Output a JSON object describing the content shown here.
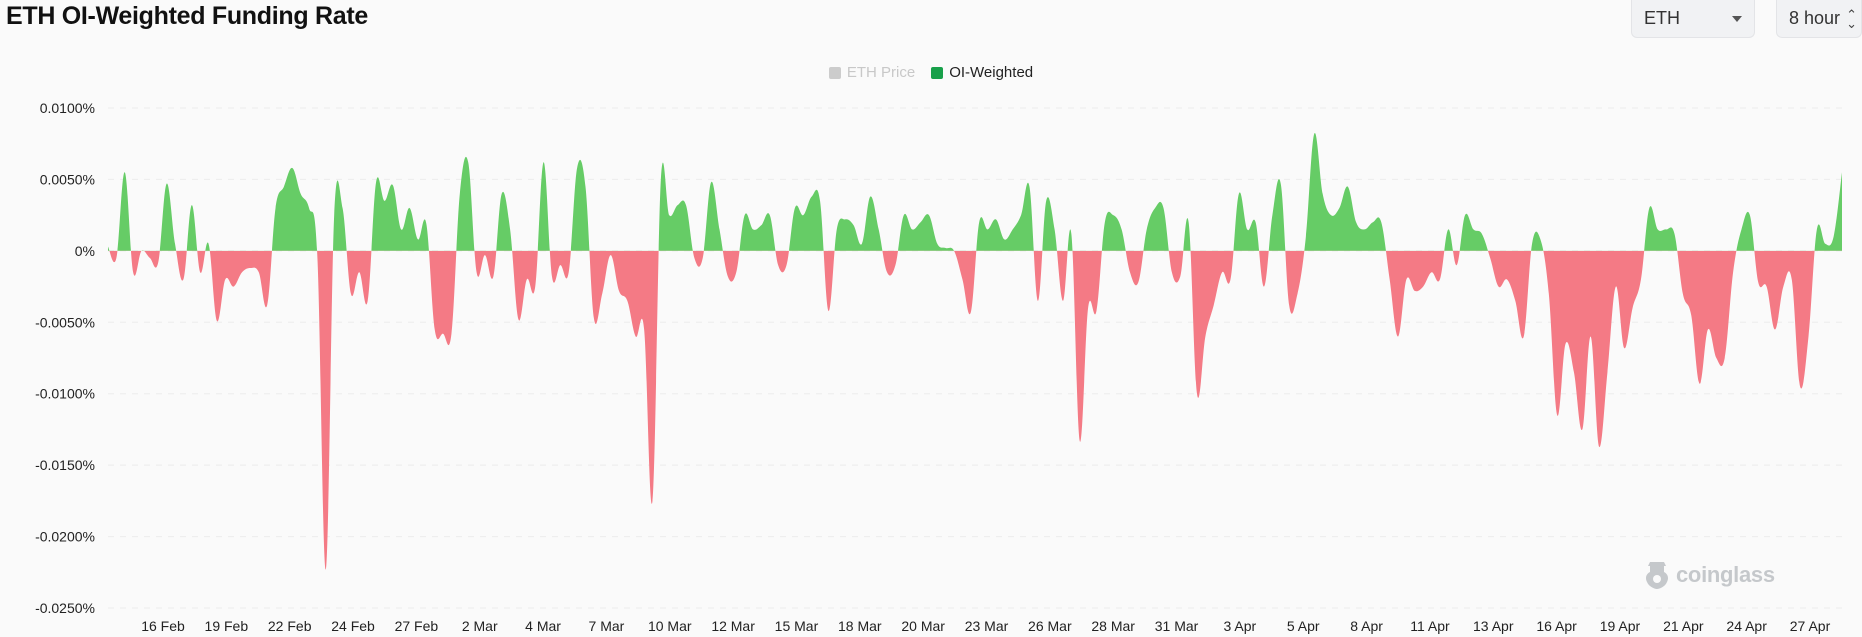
{
  "page": {
    "title": "ETH OI-Weighted Funding Rate"
  },
  "controls": {
    "symbol_select": {
      "value": "ETH"
    },
    "interval_select": {
      "value": "8 hour"
    }
  },
  "legend": {
    "items": [
      {
        "label": "ETH Price",
        "color": "#cccccc",
        "active": false
      },
      {
        "label": "OI-Weighted",
        "color": "#18a04a",
        "active": true
      }
    ]
  },
  "watermark": {
    "text": "coinglass"
  },
  "chart_data": {
    "type": "area",
    "title": "ETH OI-Weighted Funding Rate",
    "xlabel": "",
    "ylabel": "",
    "ylim": [
      -0.025,
      0.01
    ],
    "y_unit": "%",
    "y_ticks": [
      "0.0100%",
      "0.0050%",
      "0%",
      "-0.0050%",
      "-0.0100%",
      "-0.0150%",
      "-0.0200%",
      "-0.0250%"
    ],
    "x_ticks": [
      "16 Feb",
      "19 Feb",
      "22 Feb",
      "24 Feb",
      "27 Feb",
      "2 Mar",
      "4 Mar",
      "7 Mar",
      "10 Mar",
      "12 Mar",
      "15 Mar",
      "18 Mar",
      "20 Mar",
      "23 Mar",
      "26 Mar",
      "28 Mar",
      "31 Mar",
      "3 Apr",
      "5 Apr",
      "8 Apr",
      "11 Apr",
      "13 Apr",
      "16 Apr",
      "19 Apr",
      "21 Apr",
      "24 Apr",
      "27 Apr"
    ],
    "grid": true,
    "positive_color": "#66cc66",
    "negative_color": "#f47a85",
    "series": [
      {
        "name": "OI-Weighted",
        "values": [
          0.0003,
          -0.0005,
          0.0055,
          -0.0015,
          0.0,
          -0.0005,
          -0.0008,
          0.0047,
          0.0005,
          -0.002,
          0.0032,
          -0.0015,
          0.0005,
          -0.0049,
          -0.002,
          -0.0025,
          -0.0015,
          -0.0012,
          -0.0015,
          -0.0038,
          0.003,
          0.0045,
          0.0058,
          0.004,
          0.003,
          -0.0005,
          -0.0223,
          0.0025,
          0.003,
          -0.003,
          -0.0015,
          -0.0035,
          0.0048,
          0.0035,
          0.0046,
          0.0015,
          0.003,
          0.0008,
          0.0019,
          -0.0055,
          -0.0058,
          -0.0058,
          0.004,
          0.0062,
          -0.0015,
          -0.0003,
          -0.0018,
          0.004,
          0.0015,
          -0.0048,
          -0.002,
          -0.0025,
          0.0062,
          -0.0018,
          -0.001,
          -0.0015,
          0.0058,
          0.0045,
          -0.0047,
          -0.003,
          -0.0003,
          -0.0028,
          -0.0035,
          -0.006,
          -0.0055,
          -0.0175,
          0.005,
          0.0025,
          0.0032,
          0.0032,
          -0.0005,
          -0.0005,
          0.0048,
          0.0015,
          -0.0018,
          -0.0015,
          0.0025,
          0.0015,
          0.0018,
          0.0025,
          -0.001,
          -0.001,
          0.003,
          0.0025,
          0.0038,
          0.0035,
          -0.0042,
          0.0015,
          0.0022,
          0.0018,
          0.0005,
          0.0038,
          0.0015,
          -0.0015,
          -0.001,
          0.0025,
          0.0015,
          0.002,
          0.0025,
          0.0005,
          0.0002,
          0.0,
          -0.002,
          -0.0043,
          0.002,
          0.0015,
          0.0022,
          0.0008,
          0.0015,
          0.0025,
          0.0045,
          -0.0035,
          0.0035,
          0.0015,
          -0.0035,
          0.0012,
          -0.0133,
          -0.004,
          -0.0042,
          0.002,
          0.0025,
          0.0015,
          -0.0015,
          -0.0022,
          0.0015,
          0.003,
          0.003,
          -0.0015,
          -0.0018,
          0.002,
          -0.01,
          -0.006,
          -0.0038,
          -0.0015,
          -0.002,
          0.004,
          0.0015,
          0.002,
          -0.0025,
          0.0025,
          0.0047,
          -0.0038,
          -0.003,
          0.001,
          0.0082,
          0.004,
          0.0025,
          0.003,
          0.0045,
          0.002,
          0.0015,
          0.002,
          0.002,
          -0.002,
          -0.006,
          -0.002,
          -0.0028,
          -0.0025,
          -0.0015,
          -0.002,
          0.0015,
          -0.001,
          0.0025,
          0.0015,
          0.0012,
          -0.0005,
          -0.0025,
          -0.002,
          -0.0035,
          -0.006,
          0.0005,
          0.0008,
          -0.003,
          -0.0115,
          -0.0065,
          -0.0085,
          -0.0125,
          -0.006,
          -0.0137,
          -0.0085,
          -0.0025,
          -0.0068,
          -0.004,
          -0.002,
          0.003,
          0.0015,
          0.0015,
          0.0012,
          -0.003,
          -0.0045,
          -0.0093,
          -0.0055,
          -0.0075,
          -0.0075,
          -0.0015,
          0.0015,
          0.0025,
          -0.0022,
          -0.0025,
          -0.0055,
          -0.0025,
          -0.002,
          -0.0095,
          -0.006,
          0.0015,
          0.0005,
          0.001,
          0.0055
        ]
      }
    ]
  }
}
